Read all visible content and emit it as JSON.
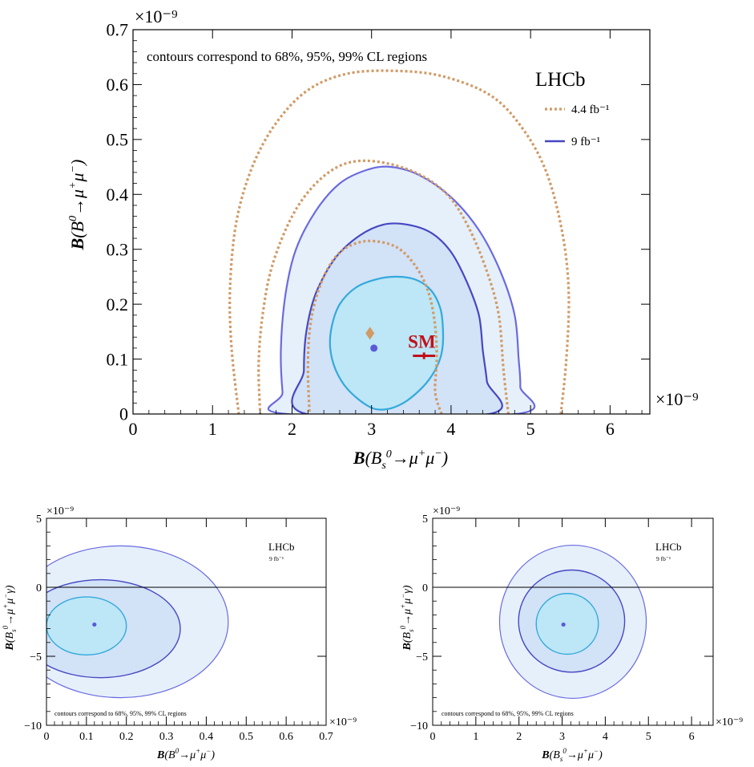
{
  "colors": {
    "fill_99": "#e6f0fb",
    "fill_95": "#d2e2f7",
    "fill_68": "#bde6f6",
    "line_99": "#6a6ae0",
    "line_95": "#4747c2",
    "line_68": "#33a9dc",
    "dotted_44": "#d19a66",
    "sm": "#c0111a",
    "point_9": "#5a5ad8",
    "point_44": "#d19a66"
  },
  "chart_data": [
    {
      "type": "contour",
      "annotation": "contours correspond to 68%, 95%, 99% CL regions",
      "experiment": "LHCb",
      "xlabel": "B(B_s^0→μ⁺μ⁻)",
      "ylabel": "B(B^0→μ⁺μ⁻)",
      "x_multiplier": "×10⁻⁹",
      "y_multiplier": "×10⁻⁹",
      "xlim": [
        0,
        6.5
      ],
      "ylim": [
        0,
        0.7
      ],
      "xticks": [
        0,
        1,
        2,
        3,
        4,
        5,
        6
      ],
      "yticks": [
        0,
        0.1,
        0.2,
        0.3,
        0.4,
        0.5,
        0.6,
        0.7
      ],
      "legend": [
        {
          "label": "4.4 fb⁻¹",
          "style": "dotted"
        },
        {
          "label": "9 fb⁻¹",
          "style": "solid"
        }
      ],
      "legend_position": "top-right",
      "best_fit_9": {
        "x": 3.03,
        "y": 0.12
      },
      "best_fit_44": {
        "x": 2.98,
        "y": 0.147
      },
      "sm": {
        "label": "SM",
        "x": 3.66,
        "y": 0.106,
        "x_err": 0.14,
        "y_err": 0.006
      },
      "contours_9fb": [
        {
          "level": "68%",
          "points": [
            [
              3.9,
              0.145
            ],
            [
              3.87,
              0.19
            ],
            [
              3.75,
              0.225
            ],
            [
              3.55,
              0.245
            ],
            [
              3.3,
              0.25
            ],
            [
              3.05,
              0.245
            ],
            [
              2.8,
              0.23
            ],
            [
              2.6,
              0.2
            ],
            [
              2.5,
              0.16
            ],
            [
              2.48,
              0.12
            ],
            [
              2.55,
              0.08
            ],
            [
              2.7,
              0.045
            ],
            [
              2.95,
              0.015
            ],
            [
              3.15,
              0.008
            ],
            [
              3.4,
              0.02
            ],
            [
              3.65,
              0.05
            ],
            [
              3.8,
              0.08
            ],
            [
              3.88,
              0.11
            ]
          ]
        },
        {
          "level": "95%",
          "points": [
            [
              4.4,
              0.115
            ],
            [
              4.35,
              0.18
            ],
            [
              4.2,
              0.24
            ],
            [
              4.0,
              0.295
            ],
            [
              3.75,
              0.33
            ],
            [
              3.45,
              0.345
            ],
            [
              3.15,
              0.345
            ],
            [
              2.85,
              0.325
            ],
            [
              2.55,
              0.285
            ],
            [
              2.3,
              0.22
            ],
            [
              2.18,
              0.15
            ],
            [
              2.15,
              0.08
            ],
            [
              2.18,
              0.0
            ],
            [
              4.48,
              0.0
            ],
            [
              4.45,
              0.06
            ]
          ]
        },
        {
          "level": "99%",
          "points": [
            [
              4.85,
              0.1
            ],
            [
              4.8,
              0.18
            ],
            [
              4.62,
              0.26
            ],
            [
              4.35,
              0.335
            ],
            [
              4.0,
              0.395
            ],
            [
              3.6,
              0.435
            ],
            [
              3.25,
              0.45
            ],
            [
              2.95,
              0.445
            ],
            [
              2.6,
              0.42
            ],
            [
              2.3,
              0.37
            ],
            [
              2.05,
              0.3
            ],
            [
              1.92,
              0.22
            ],
            [
              1.86,
              0.12
            ],
            [
              1.88,
              0.04
            ],
            [
              1.93,
              0.0
            ],
            [
              4.82,
              0.0
            ],
            [
              4.87,
              0.05
            ]
          ]
        }
      ],
      "contours_44fb": [
        {
          "level": "68%",
          "points": [
            [
              3.88,
              0.0
            ],
            [
              3.8,
              0.04
            ],
            [
              3.82,
              0.1
            ],
            [
              3.8,
              0.16
            ],
            [
              3.72,
              0.22
            ],
            [
              3.55,
              0.27
            ],
            [
              3.3,
              0.305
            ],
            [
              2.95,
              0.315
            ],
            [
              2.65,
              0.3
            ],
            [
              2.45,
              0.265
            ],
            [
              2.3,
              0.21
            ],
            [
              2.22,
              0.15
            ],
            [
              2.2,
              0.08
            ],
            [
              2.22,
              0.0
            ]
          ]
        },
        {
          "level": "95%",
          "points": [
            [
              4.72,
              0.0
            ],
            [
              4.66,
              0.08
            ],
            [
              4.6,
              0.18
            ],
            [
              4.45,
              0.26
            ],
            [
              4.22,
              0.34
            ],
            [
              3.95,
              0.4
            ],
            [
              3.55,
              0.44
            ],
            [
              3.05,
              0.46
            ],
            [
              2.65,
              0.455
            ],
            [
              2.3,
              0.42
            ],
            [
              2.0,
              0.36
            ],
            [
              1.75,
              0.27
            ],
            [
              1.63,
              0.18
            ],
            [
              1.58,
              0.09
            ],
            [
              1.6,
              0.0
            ]
          ]
        },
        {
          "level": "99%",
          "points": [
            [
              5.38,
              0.0
            ],
            [
              5.45,
              0.1
            ],
            [
              5.48,
              0.22
            ],
            [
              5.4,
              0.33
            ],
            [
              5.2,
              0.44
            ],
            [
              4.9,
              0.52
            ],
            [
              4.5,
              0.58
            ],
            [
              3.9,
              0.615
            ],
            [
              3.3,
              0.625
            ],
            [
              2.7,
              0.62
            ],
            [
              2.2,
              0.59
            ],
            [
              1.8,
              0.53
            ],
            [
              1.5,
              0.45
            ],
            [
              1.3,
              0.35
            ],
            [
              1.22,
              0.23
            ],
            [
              1.24,
              0.12
            ],
            [
              1.33,
              0.0
            ]
          ]
        }
      ]
    },
    {
      "type": "contour",
      "annotation": "contours correspond to 68%, 95%, 99% CL regions",
      "experiment": "LHCb",
      "lumi": "9 fb⁻¹",
      "xlabel": "B(B^0→μ⁺μ⁻)",
      "ylabel": "B(B_s^0→μ⁺μ⁻γ)",
      "x_multiplier": "×10⁻⁹",
      "y_multiplier": "×10⁻⁹",
      "xlim": [
        0,
        0.7
      ],
      "ylim": [
        -10,
        5
      ],
      "xticks": [
        0,
        0.1,
        0.2,
        0.3,
        0.4,
        0.5,
        0.6,
        0.7
      ],
      "yticks": [
        -10,
        -5,
        0,
        5
      ],
      "best_fit": {
        "x": 0.12,
        "y": -2.7
      },
      "contours": [
        {
          "level": "68%",
          "center": [
            0.1,
            -2.8
          ],
          "rx": 0.1,
          "ry": 2.1
        },
        {
          "level": "95%",
          "center": [
            0.135,
            -3.0
          ],
          "rx": 0.2,
          "ry": 3.55
        },
        {
          "level": "99%",
          "center": [
            0.185,
            -2.5
          ],
          "rx": 0.27,
          "ry": 5.5
        }
      ]
    },
    {
      "type": "contour",
      "annotation": "contours correspond to 68%, 95%, 99% CL regions",
      "experiment": "LHCb",
      "lumi": "9 fb⁻¹",
      "xlabel": "B(B_s^0→μ⁺μ⁻)",
      "ylabel": "B(B_s^0→μ⁺μ⁻γ)",
      "x_multiplier": "×10⁻⁹",
      "y_multiplier": "×10⁻⁹",
      "xlim": [
        0,
        6.5
      ],
      "ylim": [
        -10,
        5
      ],
      "xticks": [
        0,
        1,
        2,
        3,
        4,
        5,
        6
      ],
      "yticks": [
        -10,
        -5,
        0,
        5
      ],
      "best_fit": {
        "x": 3.03,
        "y": -2.7
      },
      "contours": [
        {
          "level": "68%",
          "center": [
            3.12,
            -2.65
          ],
          "rx": 0.72,
          "ry": 2.2
        },
        {
          "level": "95%",
          "center": [
            3.22,
            -2.45
          ],
          "rx": 1.23,
          "ry": 3.7
        },
        {
          "level": "99%",
          "center": [
            3.25,
            -2.5
          ],
          "rx": 1.7,
          "ry": 5.55
        }
      ]
    }
  ]
}
